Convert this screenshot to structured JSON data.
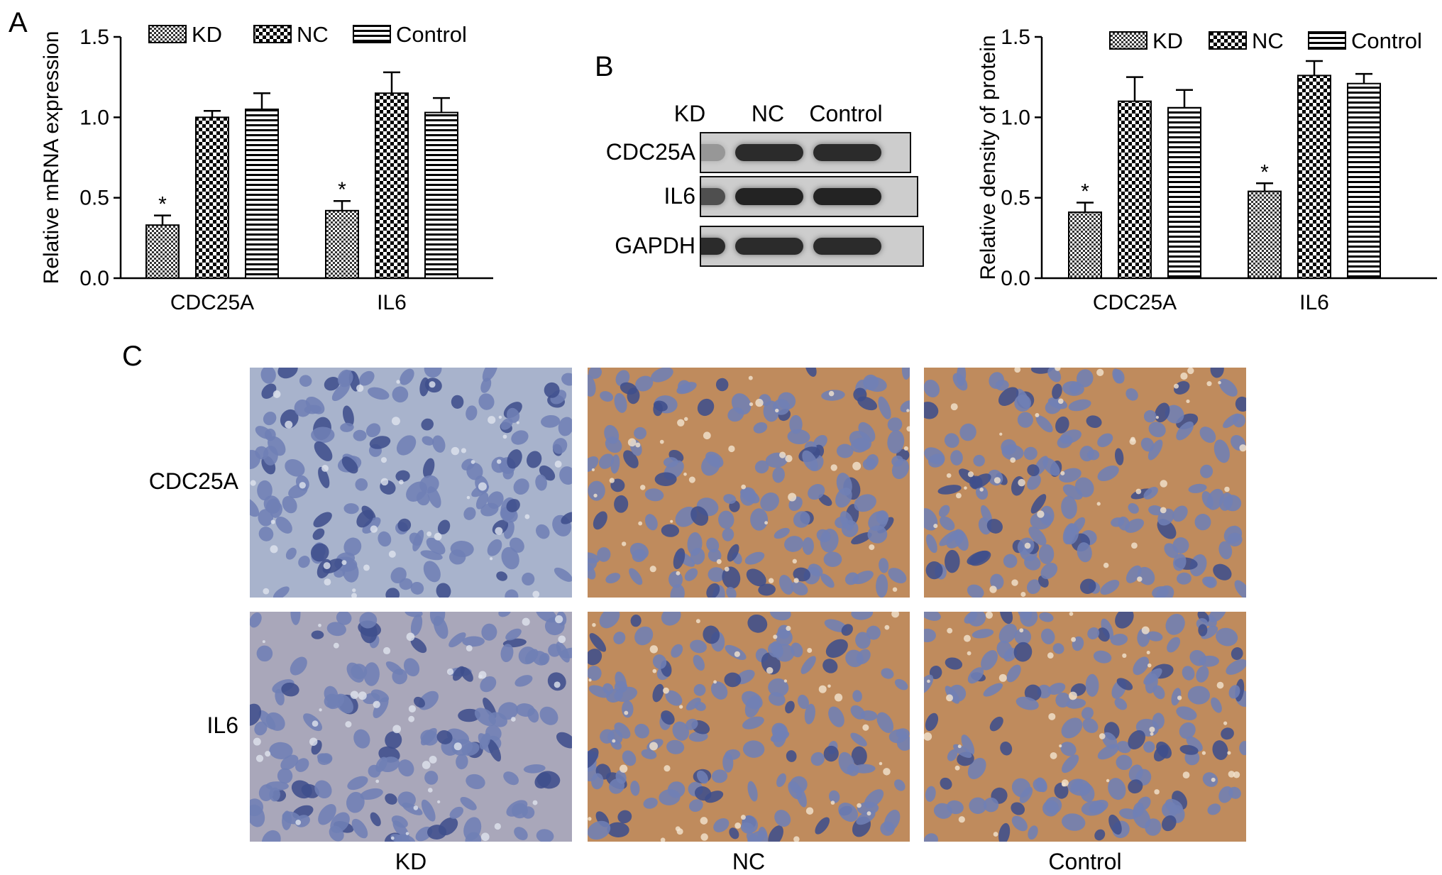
{
  "panels": {
    "a": "A",
    "b": "B",
    "c": "C"
  },
  "colors": {
    "blue_stain": "#6f7fb5",
    "brown_stain": "#bf8b5d",
    "band": "#222222"
  },
  "chart_data": [
    {
      "id": "A",
      "type": "bar",
      "categories": [
        "CDC25A",
        "IL6"
      ],
      "ylabel": "Relative mRNA expression",
      "ylim": [
        0,
        1.5
      ],
      "yticks": [
        "0.0",
        "0.5",
        "1.0",
        "1.5"
      ],
      "legend_position": "top",
      "series": [
        {
          "name": "KD",
          "pattern": "small-check",
          "values": [
            0.33,
            0.42
          ],
          "errors": [
            0.06,
            0.06
          ],
          "significance": [
            "*",
            "*"
          ]
        },
        {
          "name": "NC",
          "pattern": "large-check",
          "values": [
            1.0,
            1.15
          ],
          "errors": [
            0.04,
            0.13
          ],
          "significance": [
            "",
            ""
          ]
        },
        {
          "name": "Control",
          "pattern": "horizontal-lines",
          "values": [
            1.05,
            1.03
          ],
          "errors": [
            0.1,
            0.09
          ],
          "significance": [
            "",
            ""
          ]
        }
      ]
    },
    {
      "id": "B",
      "type": "bar",
      "categories": [
        "CDC25A",
        "IL6"
      ],
      "ylabel": "Relative density of protein",
      "ylim": [
        0,
        1.5
      ],
      "yticks": [
        "0.0",
        "0.5",
        "1.0",
        "1.5"
      ],
      "legend_position": "top",
      "series": [
        {
          "name": "KD",
          "pattern": "small-check",
          "values": [
            0.41,
            0.54
          ],
          "errors": [
            0.06,
            0.05
          ],
          "significance": [
            "*",
            "*"
          ]
        },
        {
          "name": "NC",
          "pattern": "large-check",
          "values": [
            1.1,
            1.26
          ],
          "errors": [
            0.15,
            0.09
          ],
          "significance": [
            "",
            ""
          ]
        },
        {
          "name": "Control",
          "pattern": "horizontal-lines",
          "values": [
            1.06,
            1.21
          ],
          "errors": [
            0.11,
            0.06
          ],
          "significance": [
            "",
            ""
          ]
        }
      ]
    }
  ],
  "western_blot": {
    "lanes": [
      "KD",
      "NC",
      "Control"
    ],
    "rows": [
      {
        "label": "CDC25A",
        "intensities": [
          0.3,
          0.9,
          0.9
        ]
      },
      {
        "label": "IL6",
        "intensities": [
          0.7,
          0.95,
          0.95
        ]
      },
      {
        "label": "GAPDH",
        "intensities": [
          0.9,
          0.9,
          0.9
        ]
      }
    ]
  },
  "ihc": {
    "rows": [
      "CDC25A",
      "IL6"
    ],
    "columns": [
      "KD",
      "NC",
      "Control"
    ],
    "brown_staining": [
      [
        0.05,
        0.85,
        0.75
      ],
      [
        0.35,
        0.9,
        0.8
      ]
    ]
  }
}
